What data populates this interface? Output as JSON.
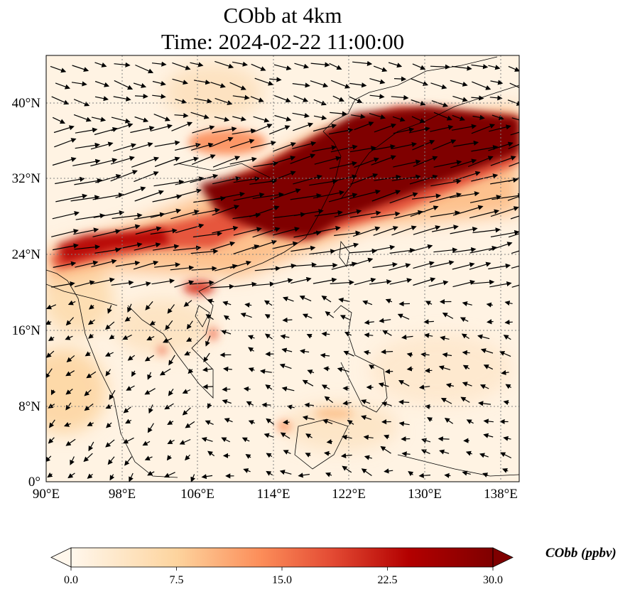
{
  "title": {
    "line1": "CObb at 4km",
    "line2": "Time: 2024-02-22 11:00:00"
  },
  "map": {
    "lon_range": [
      90,
      140
    ],
    "lat_range": [
      0,
      45
    ],
    "x_ticks": [
      "90°E",
      "98°E",
      "106°E",
      "114°E",
      "122°E",
      "130°E",
      "138°E"
    ],
    "y_ticks": [
      "0°",
      "8°N",
      "16°N",
      "24°N",
      "32°N",
      "40°N"
    ],
    "gridlines": true,
    "colormap": "OrRd",
    "colors": {
      "low": "#fff7ec",
      "mid": "#fdbb84",
      "high": "#7f0000",
      "vectors": "#000000"
    }
  },
  "colorbar": {
    "title": "CObb (ppbv)",
    "ticks": [
      "0.0",
      "7.5",
      "15.0",
      "22.5",
      "30.0"
    ],
    "range": [
      0,
      30
    ],
    "extend": "both"
  }
}
